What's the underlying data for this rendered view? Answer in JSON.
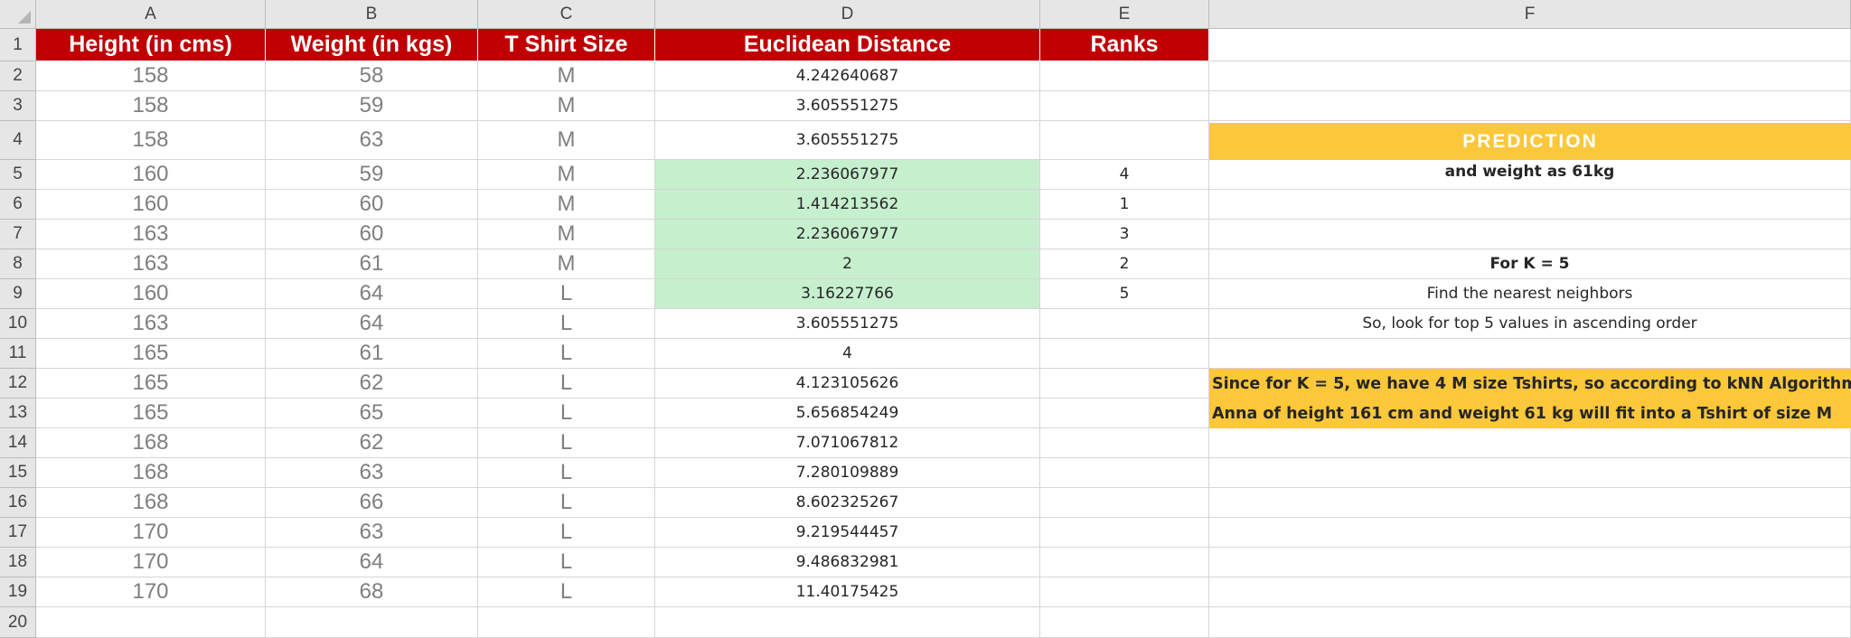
{
  "column_letters": [
    "A",
    "B",
    "C",
    "D",
    "E",
    "F"
  ],
  "row_numbers": [
    "1",
    "2",
    "3",
    "4",
    "5",
    "6",
    "7",
    "8",
    "9",
    "10",
    "11",
    "12",
    "13",
    "14",
    "15",
    "16",
    "17",
    "18",
    "19",
    "20"
  ],
  "headers": [
    "Height (in cms)",
    "Weight (in kgs)",
    "T Shirt Size",
    "Euclidean Distance",
    "Ranks"
  ],
  "rows": [
    {
      "height": "158",
      "weight": "58",
      "size": "M",
      "distance": "4.242640687",
      "rank": "",
      "highlight": false
    },
    {
      "height": "158",
      "weight": "59",
      "size": "M",
      "distance": "3.605551275",
      "rank": "",
      "highlight": false
    },
    {
      "height": "158",
      "weight": "63",
      "size": "M",
      "distance": "3.605551275",
      "rank": "",
      "highlight": false
    },
    {
      "height": "160",
      "weight": "59",
      "size": "M",
      "distance": "2.236067977",
      "rank": "4",
      "highlight": true
    },
    {
      "height": "160",
      "weight": "60",
      "size": "M",
      "distance": "1.414213562",
      "rank": "1",
      "highlight": true
    },
    {
      "height": "163",
      "weight": "60",
      "size": "M",
      "distance": "2.236067977",
      "rank": "3",
      "highlight": true
    },
    {
      "height": "163",
      "weight": "61",
      "size": "M",
      "distance": "2",
      "rank": "2",
      "highlight": true
    },
    {
      "height": "160",
      "weight": "64",
      "size": "L",
      "distance": "3.16227766",
      "rank": "5",
      "highlight": true
    },
    {
      "height": "163",
      "weight": "64",
      "size": "L",
      "distance": "3.605551275",
      "rank": "",
      "highlight": false
    },
    {
      "height": "165",
      "weight": "61",
      "size": "L",
      "distance": "4",
      "rank": "",
      "highlight": false
    },
    {
      "height": "165",
      "weight": "62",
      "size": "L",
      "distance": "4.123105626",
      "rank": "",
      "highlight": false
    },
    {
      "height": "165",
      "weight": "65",
      "size": "L",
      "distance": "5.656854249",
      "rank": "",
      "highlight": false
    },
    {
      "height": "168",
      "weight": "62",
      "size": "L",
      "distance": "7.071067812",
      "rank": "",
      "highlight": false
    },
    {
      "height": "168",
      "weight": "63",
      "size": "L",
      "distance": "7.280109889",
      "rank": "",
      "highlight": false
    },
    {
      "height": "168",
      "weight": "66",
      "size": "L",
      "distance": "8.602325267",
      "rank": "",
      "highlight": false
    },
    {
      "height": "170",
      "weight": "63",
      "size": "L",
      "distance": "9.219544457",
      "rank": "",
      "highlight": false
    },
    {
      "height": "170",
      "weight": "64",
      "size": "L",
      "distance": "9.486832981",
      "rank": "",
      "highlight": false
    },
    {
      "height": "170",
      "weight": "68",
      "size": "L",
      "distance": "11.40175425",
      "rank": "",
      "highlight": false
    }
  ],
  "prediction": {
    "title": "PREDICTION",
    "subtitle": "and weight as 61kg",
    "k_label": "For K = 5",
    "note1": "Find the nearest neighbors",
    "note2": "So, look for top 5 values in ascending order",
    "conclusion_line1": "Since for K = 5, we have 4 M size Tshirts, so according to kNN Algorithm",
    "conclusion_line2": "Anna of height 161 cm and weight 61 kg will fit into a Tshirt of size M"
  },
  "colors": {
    "header_red": "#c00000",
    "highlight_green": "#c6efce",
    "prediction_yellow": "#fbc73b"
  }
}
